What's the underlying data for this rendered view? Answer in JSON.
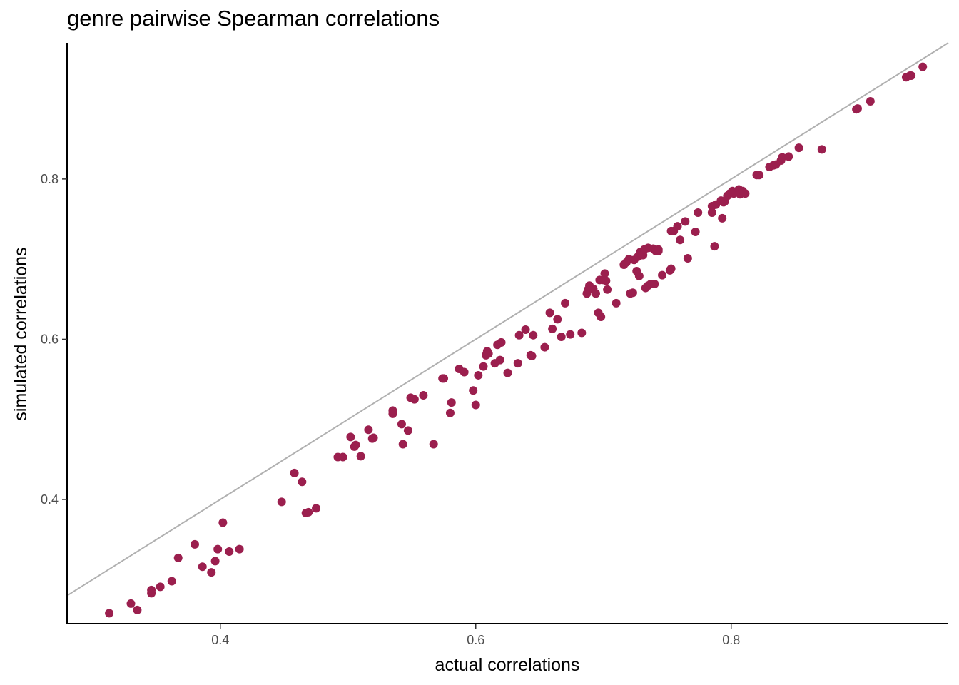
{
  "chart_data": {
    "type": "scatter",
    "title": "genre pairwise Spearman correlations",
    "xlabel": "actual correlations",
    "ylabel": "simulated correlations",
    "xlim": [
      0.28,
      0.97
    ],
    "ylim": [
      0.245,
      0.97
    ],
    "xticks": [
      0.4,
      0.6,
      0.8
    ],
    "xtick_labels": [
      "0.4",
      "0.6",
      "0.8"
    ],
    "yticks": [
      0.4,
      0.6,
      0.8
    ],
    "ytick_labels": [
      "0.4",
      "0.6",
      "0.8"
    ],
    "grid": false,
    "reference_line": {
      "slope": 1,
      "intercept": 0,
      "color": "#b0b0b0"
    },
    "point_color": "#9b1f4e",
    "series": [
      {
        "points": [
          [
            0.313,
            0.258
          ],
          [
            0.33,
            0.27
          ],
          [
            0.335,
            0.262
          ],
          [
            0.346,
            0.283
          ],
          [
            0.346,
            0.287
          ],
          [
            0.353,
            0.291
          ],
          [
            0.362,
            0.298
          ],
          [
            0.367,
            0.327
          ],
          [
            0.38,
            0.344
          ],
          [
            0.386,
            0.316
          ],
          [
            0.393,
            0.309
          ],
          [
            0.396,
            0.323
          ],
          [
            0.398,
            0.338
          ],
          [
            0.402,
            0.371
          ],
          [
            0.407,
            0.335
          ],
          [
            0.415,
            0.338
          ],
          [
            0.448,
            0.397
          ],
          [
            0.458,
            0.433
          ],
          [
            0.464,
            0.422
          ],
          [
            0.467,
            0.383
          ],
          [
            0.469,
            0.384
          ],
          [
            0.475,
            0.389
          ],
          [
            0.492,
            0.453
          ],
          [
            0.496,
            0.453
          ],
          [
            0.502,
            0.478
          ],
          [
            0.505,
            0.466
          ],
          [
            0.506,
            0.468
          ],
          [
            0.51,
            0.454
          ],
          [
            0.516,
            0.487
          ],
          [
            0.519,
            0.476
          ],
          [
            0.52,
            0.477
          ],
          [
            0.535,
            0.507
          ],
          [
            0.535,
            0.511
          ],
          [
            0.542,
            0.494
          ],
          [
            0.543,
            0.469
          ],
          [
            0.547,
            0.486
          ],
          [
            0.549,
            0.527
          ],
          [
            0.552,
            0.525
          ],
          [
            0.559,
            0.53
          ],
          [
            0.567,
            0.469
          ],
          [
            0.574,
            0.551
          ],
          [
            0.575,
            0.551
          ],
          [
            0.58,
            0.508
          ],
          [
            0.581,
            0.521
          ],
          [
            0.587,
            0.563
          ],
          [
            0.591,
            0.559
          ],
          [
            0.598,
            0.536
          ],
          [
            0.6,
            0.518
          ],
          [
            0.602,
            0.555
          ],
          [
            0.606,
            0.566
          ],
          [
            0.608,
            0.58
          ],
          [
            0.609,
            0.585
          ],
          [
            0.61,
            0.582
          ],
          [
            0.615,
            0.57
          ],
          [
            0.617,
            0.593
          ],
          [
            0.619,
            0.574
          ],
          [
            0.62,
            0.596
          ],
          [
            0.625,
            0.558
          ],
          [
            0.633,
            0.57
          ],
          [
            0.634,
            0.605
          ],
          [
            0.639,
            0.612
          ],
          [
            0.643,
            0.58
          ],
          [
            0.644,
            0.579
          ],
          [
            0.645,
            0.605
          ],
          [
            0.654,
            0.59
          ],
          [
            0.658,
            0.633
          ],
          [
            0.66,
            0.613
          ],
          [
            0.664,
            0.625
          ],
          [
            0.667,
            0.603
          ],
          [
            0.67,
            0.645
          ],
          [
            0.674,
            0.606
          ],
          [
            0.683,
            0.608
          ],
          [
            0.687,
            0.657
          ],
          [
            0.688,
            0.662
          ],
          [
            0.689,
            0.667
          ],
          [
            0.692,
            0.663
          ],
          [
            0.694,
            0.657
          ],
          [
            0.696,
            0.633
          ],
          [
            0.697,
            0.674
          ],
          [
            0.698,
            0.628
          ],
          [
            0.7,
            0.674
          ],
          [
            0.701,
            0.682
          ],
          [
            0.702,
            0.673
          ],
          [
            0.703,
            0.662
          ],
          [
            0.71,
            0.645
          ],
          [
            0.716,
            0.693
          ],
          [
            0.718,
            0.696
          ],
          [
            0.72,
            0.7
          ],
          [
            0.721,
            0.657
          ],
          [
            0.723,
            0.658
          ],
          [
            0.724,
            0.699
          ],
          [
            0.726,
            0.685
          ],
          [
            0.727,
            0.703
          ],
          [
            0.728,
            0.679
          ],
          [
            0.729,
            0.709
          ],
          [
            0.73,
            0.705
          ],
          [
            0.731,
            0.705
          ],
          [
            0.732,
            0.712
          ],
          [
            0.733,
            0.664
          ],
          [
            0.735,
            0.714
          ],
          [
            0.735,
            0.667
          ],
          [
            0.737,
            0.669
          ],
          [
            0.739,
            0.713
          ],
          [
            0.74,
            0.669
          ],
          [
            0.741,
            0.71
          ],
          [
            0.743,
            0.712
          ],
          [
            0.743,
            0.71
          ],
          [
            0.746,
            0.68
          ],
          [
            0.752,
            0.686
          ],
          [
            0.753,
            0.735
          ],
          [
            0.753,
            0.688
          ],
          [
            0.755,
            0.735
          ],
          [
            0.758,
            0.741
          ],
          [
            0.76,
            0.724
          ],
          [
            0.764,
            0.747
          ],
          [
            0.766,
            0.701
          ],
          [
            0.772,
            0.734
          ],
          [
            0.774,
            0.758
          ],
          [
            0.785,
            0.758
          ],
          [
            0.785,
            0.766
          ],
          [
            0.787,
            0.716
          ],
          [
            0.788,
            0.768
          ],
          [
            0.792,
            0.773
          ],
          [
            0.793,
            0.751
          ],
          [
            0.794,
            0.771
          ],
          [
            0.795,
            0.772
          ],
          [
            0.797,
            0.779
          ],
          [
            0.799,
            0.782
          ],
          [
            0.801,
            0.785
          ],
          [
            0.802,
            0.782
          ],
          [
            0.806,
            0.787
          ],
          [
            0.807,
            0.781
          ],
          [
            0.809,
            0.785
          ],
          [
            0.811,
            0.782
          ],
          [
            0.82,
            0.805
          ],
          [
            0.822,
            0.805
          ],
          [
            0.83,
            0.815
          ],
          [
            0.833,
            0.817
          ],
          [
            0.835,
            0.818
          ],
          [
            0.839,
            0.823
          ],
          [
            0.84,
            0.827
          ],
          [
            0.845,
            0.828
          ],
          [
            0.853,
            0.839
          ],
          [
            0.871,
            0.837
          ],
          [
            0.898,
            0.887
          ],
          [
            0.899,
            0.888
          ],
          [
            0.909,
            0.897
          ],
          [
            0.937,
            0.927
          ],
          [
            0.94,
            0.929
          ],
          [
            0.941,
            0.929
          ],
          [
            0.95,
            0.94
          ]
        ]
      }
    ]
  }
}
